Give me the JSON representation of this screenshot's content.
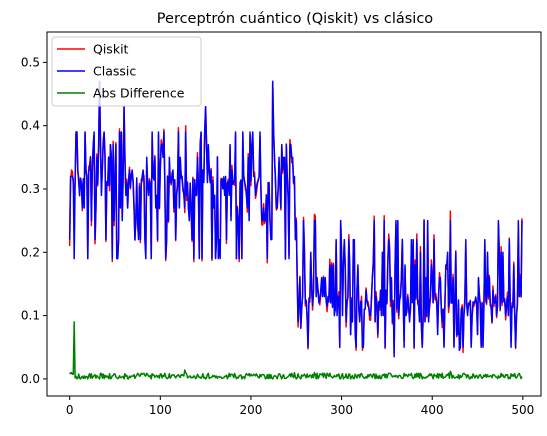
{
  "chart_data": {
    "type": "line",
    "title": "Perceptrón cuántico (Qiskit) vs clásico",
    "xlabel": "",
    "ylabel": "",
    "xlim": [
      -25,
      520
    ],
    "ylim": [
      -0.027,
      0.548
    ],
    "xticks": [
      0,
      100,
      200,
      300,
      400,
      500
    ],
    "xtick_labels": [
      "0",
      "100",
      "200",
      "300",
      "400",
      "500"
    ],
    "yticks": [
      0.0,
      0.1,
      0.2,
      0.3,
      0.4,
      0.5
    ],
    "ytick_labels": [
      "0.0",
      "0.1",
      "0.2",
      "0.3",
      "0.4",
      "0.5"
    ],
    "grid": false,
    "legend_position": "top-left",
    "n_points": 500,
    "series": [
      {
        "name": "Qiskit",
        "color": "#ff0000",
        "description": "fluctuates around 0.25-0.40 for x in 0-250, then drops to 0.05-0.26 for x in 250-500",
        "key_points": [
          {
            "x": 0,
            "y": 0.21
          },
          {
            "x": 2,
            "y": 0.33
          },
          {
            "x": 5,
            "y": 0.28
          },
          {
            "x": 8,
            "y": 0.39
          },
          {
            "x": 20,
            "y": 0.19
          },
          {
            "x": 33,
            "y": 0.47
          },
          {
            "x": 60,
            "y": 0.43
          },
          {
            "x": 90,
            "y": 0.19
          },
          {
            "x": 128,
            "y": 0.4
          },
          {
            "x": 150,
            "y": 0.43
          },
          {
            "x": 190,
            "y": 0.19
          },
          {
            "x": 224,
            "y": 0.47
          },
          {
            "x": 248,
            "y": 0.31
          },
          {
            "x": 255,
            "y": 0.08
          },
          {
            "x": 270,
            "y": 0.26
          },
          {
            "x": 358,
            "y": 0.04
          },
          {
            "x": 420,
            "y": 0.265
          },
          {
            "x": 430,
            "y": 0.045
          },
          {
            "x": 497,
            "y": 0.165
          }
        ]
      },
      {
        "name": "Classic",
        "color": "#0000ff",
        "description": "closely tracks the Qiskit series",
        "key_points": [
          {
            "x": 0,
            "y": 0.22
          },
          {
            "x": 2,
            "y": 0.32
          },
          {
            "x": 5,
            "y": 0.19
          },
          {
            "x": 8,
            "y": 0.39
          },
          {
            "x": 20,
            "y": 0.19
          },
          {
            "x": 33,
            "y": 0.47
          },
          {
            "x": 60,
            "y": 0.43
          },
          {
            "x": 90,
            "y": 0.19
          },
          {
            "x": 128,
            "y": 0.39
          },
          {
            "x": 150,
            "y": 0.43
          },
          {
            "x": 190,
            "y": 0.19
          },
          {
            "x": 224,
            "y": 0.47
          },
          {
            "x": 248,
            "y": 0.32
          },
          {
            "x": 255,
            "y": 0.08
          },
          {
            "x": 270,
            "y": 0.25
          },
          {
            "x": 358,
            "y": 0.035
          },
          {
            "x": 420,
            "y": 0.25
          },
          {
            "x": 430,
            "y": 0.045
          },
          {
            "x": 497,
            "y": 0.16
          }
        ]
      },
      {
        "name": "Abs Difference",
        "color": "#008000",
        "description": "absolute difference between the two series, near zero (0.000-0.015) throughout",
        "key_points": [
          {
            "x": 0,
            "y": 0.01
          },
          {
            "x": 127,
            "y": 0.014
          },
          {
            "x": 250,
            "y": 0.0
          },
          {
            "x": 420,
            "y": 0.012
          },
          {
            "x": 497,
            "y": 0.005
          }
        ]
      }
    ]
  }
}
